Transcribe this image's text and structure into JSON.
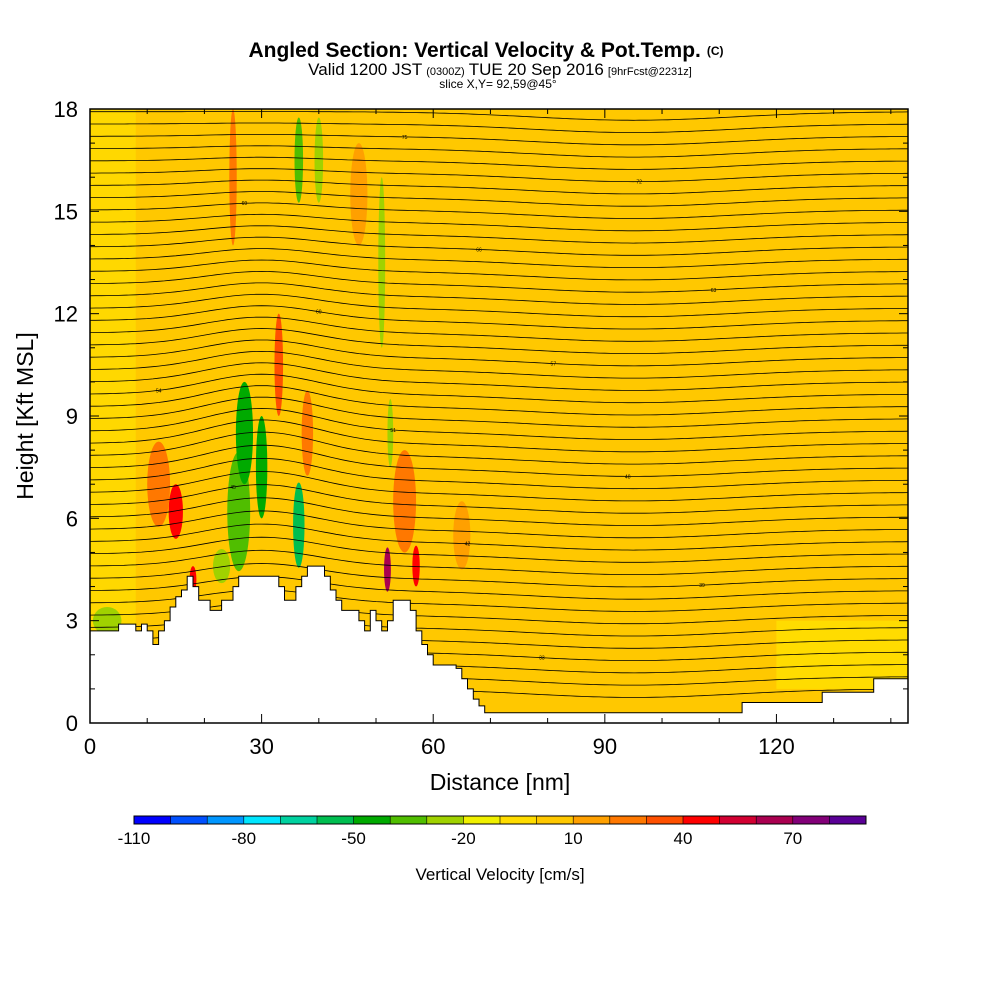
{
  "header": {
    "title_main": "Angled Section: Vertical Velocity & Pot.Temp.",
    "title_unit": "(C)",
    "valid_main": "Valid 1200 JST",
    "valid_z": "(0300Z)",
    "valid_date": "TUE 20 Sep 2016",
    "valid_fcst": "[9hrFcst@2231z]",
    "slice": "slice X,Y= 92,59@45°"
  },
  "chart_data": {
    "type": "heatmap",
    "title": "Angled Section: Vertical Velocity & Pot.Temp. (C)",
    "xlabel": "Distance [nm]",
    "ylabel": "Height [Kft MSL]",
    "xlim": [
      0,
      143
    ],
    "ylim": [
      0,
      18
    ],
    "x_ticks": [
      "0",
      "30",
      "60",
      "90",
      "120"
    ],
    "y_ticks": [
      "0",
      "3",
      "6",
      "9",
      "12",
      "15",
      "18"
    ],
    "x_tick_values": [
      0,
      30,
      60,
      90,
      120
    ],
    "y_tick_values": [
      0,
      3,
      6,
      9,
      12,
      15,
      18
    ],
    "colorbar": {
      "label": "Vertical Velocity [cm/s]",
      "tick_labels": [
        "-110",
        "-80",
        "-50",
        "-20",
        "10",
        "40",
        "70"
      ],
      "levels": [
        -110,
        -100,
        -90,
        -80,
        -70,
        -60,
        -50,
        -40,
        -30,
        -20,
        -10,
        0,
        10,
        20,
        30,
        40,
        50,
        60,
        70,
        80
      ],
      "colors": [
        "#0000ff",
        "#0050ff",
        "#0096ff",
        "#00e6ff",
        "#00d2a0",
        "#00be50",
        "#00aa00",
        "#50be00",
        "#a0d200",
        "#f0f000",
        "#ffdc00",
        "#ffc800",
        "#ffa000",
        "#ff7800",
        "#ff5000",
        "#ff0000",
        "#d20032",
        "#aa0050",
        "#820078",
        "#5a0096"
      ]
    },
    "terrain_kft": [
      [
        0,
        2.7
      ],
      [
        3,
        2.7
      ],
      [
        5,
        2.9
      ],
      [
        7,
        2.9
      ],
      [
        8,
        2.7
      ],
      [
        9,
        2.9
      ],
      [
        10,
        2.7
      ],
      [
        11,
        2.3
      ],
      [
        12,
        2.7
      ],
      [
        13,
        3.0
      ],
      [
        14,
        3.4
      ],
      [
        15,
        3.7
      ],
      [
        16,
        3.9
      ],
      [
        17,
        4.3
      ],
      [
        18,
        4.0
      ],
      [
        19,
        3.6
      ],
      [
        20,
        3.6
      ],
      [
        21,
        3.3
      ],
      [
        22,
        3.3
      ],
      [
        23,
        3.6
      ],
      [
        24,
        3.6
      ],
      [
        25,
        4.0
      ],
      [
        26,
        4.3
      ],
      [
        30,
        4.3
      ],
      [
        32,
        4.3
      ],
      [
        33,
        4.0
      ],
      [
        34,
        3.6
      ],
      [
        35,
        3.6
      ],
      [
        36,
        4.0
      ],
      [
        37,
        4.3
      ],
      [
        38,
        4.6
      ],
      [
        40,
        4.6
      ],
      [
        41,
        4.3
      ],
      [
        42,
        3.9
      ],
      [
        43,
        3.6
      ],
      [
        44,
        3.3
      ],
      [
        45,
        3.3
      ],
      [
        47,
        3.0
      ],
      [
        48,
        2.7
      ],
      [
        49,
        3.3
      ],
      [
        50,
        3.0
      ],
      [
        51,
        2.7
      ],
      [
        52,
        3.0
      ],
      [
        53,
        3.6
      ],
      [
        55,
        3.6
      ],
      [
        56,
        3.3
      ],
      [
        57,
        2.7
      ],
      [
        58,
        2.3
      ],
      [
        59,
        2.0
      ],
      [
        60,
        1.7
      ],
      [
        61,
        1.7
      ],
      [
        63,
        1.7
      ],
      [
        64,
        1.6
      ],
      [
        65,
        1.3
      ],
      [
        66,
        1.0
      ],
      [
        67,
        0.7
      ],
      [
        68,
        0.5
      ],
      [
        69,
        0.3
      ],
      [
        80,
        0.3
      ],
      [
        90,
        0.3
      ],
      [
        114,
        0.3
      ],
      [
        114,
        0.6
      ],
      [
        124,
        0.6
      ],
      [
        128,
        0.6
      ],
      [
        128,
        0.9
      ],
      [
        137,
        0.9
      ],
      [
        137,
        1.3
      ],
      [
        143,
        1.3
      ]
    ],
    "features": [
      {
        "x": 15,
        "z": 6.2,
        "w": 2.5,
        "h": 1.6,
        "value": 48
      },
      {
        "x": 12,
        "z": 7.0,
        "w": 4,
        "h": 2.5,
        "value": 25
      },
      {
        "x": 18,
        "z": 4.2,
        "w": 1.2,
        "value": 45,
        "h": 0.8
      },
      {
        "x": 26,
        "z": 6.2,
        "w": 4,
        "h": 3.5,
        "value": -35
      },
      {
        "x": 27,
        "z": 8.5,
        "w": 3,
        "h": 3,
        "value": -45
      },
      {
        "x": 30,
        "z": 7.5,
        "w": 2,
        "h": 3,
        "value": -50
      },
      {
        "x": 23,
        "z": 4.6,
        "w": 3,
        "h": 1,
        "value": -28
      },
      {
        "x": 36.5,
        "z": 5.5,
        "w": 1,
        "h": 1.5,
        "value": -95
      },
      {
        "x": 36.5,
        "z": 5.8,
        "w": 2,
        "h": 2.5,
        "value": -55
      },
      {
        "x": 33,
        "z": 10.5,
        "w": 1.5,
        "h": 3,
        "value": 35
      },
      {
        "x": 38,
        "z": 8.5,
        "w": 2,
        "h": 2.5,
        "value": 20
      },
      {
        "x": 36.5,
        "z": 16.5,
        "w": 1.5,
        "h": 2.5,
        "value": -35
      },
      {
        "x": 40,
        "z": 16.5,
        "w": 1.5,
        "h": 2.5,
        "value": -30
      },
      {
        "x": 52,
        "z": 4.5,
        "w": 1.2,
        "h": 1.3,
        "value": 60
      },
      {
        "x": 57,
        "z": 4.6,
        "w": 1.3,
        "h": 1.2,
        "value": 45
      },
      {
        "x": 55,
        "z": 6.5,
        "w": 4,
        "h": 3,
        "value": 22
      },
      {
        "x": 51,
        "z": 13.5,
        "w": 1.2,
        "h": 5,
        "value": -28
      },
      {
        "x": 52.5,
        "z": 8.5,
        "w": 1,
        "h": 2,
        "value": -25
      },
      {
        "x": 65,
        "z": 5.5,
        "w": 3,
        "h": 2,
        "value": 14
      },
      {
        "x": 25,
        "z": 16,
        "w": 1.3,
        "h": 4,
        "value": 25
      },
      {
        "x": 47,
        "z": 15.5,
        "w": 3,
        "h": 3,
        "value": 12
      },
      {
        "x": 3,
        "z": 3.0,
        "w": 5,
        "h": 0.8,
        "value": -25
      }
    ],
    "theta_contours_C": [
      30,
      31,
      32,
      33,
      34,
      35,
      36,
      37,
      38,
      39,
      40,
      41,
      42,
      43,
      44,
      45,
      46,
      47,
      48,
      49,
      50,
      51,
      52,
      53,
      54,
      55,
      56,
      57,
      58,
      59,
      60,
      61,
      62,
      63,
      64,
      65,
      66,
      67,
      68,
      69,
      70,
      71,
      72,
      73,
      74,
      75,
      76,
      77,
      78
    ]
  }
}
